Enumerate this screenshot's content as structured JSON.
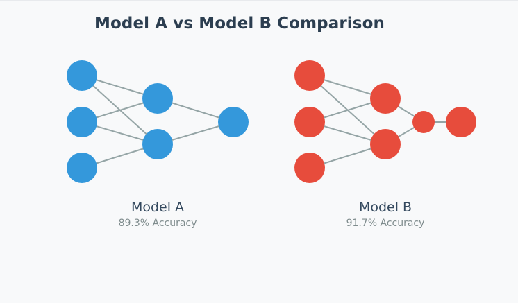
{
  "title": "Model A vs Model B Comparison",
  "colors": {
    "model_a": "#3498db",
    "model_b": "#e74c3c",
    "edge": "#95a5a6",
    "title": "#2c3e50",
    "background": "#f8f9fa"
  },
  "models": [
    {
      "name": "Model A",
      "accuracy": "89.3% Accuracy",
      "layers": [
        "input",
        "hidden",
        "output"
      ]
    },
    {
      "name": "Model B",
      "accuracy": "91.7% Accuracy",
      "layers": [
        "input",
        "hidden",
        "bottleneck",
        "output"
      ]
    }
  ]
}
